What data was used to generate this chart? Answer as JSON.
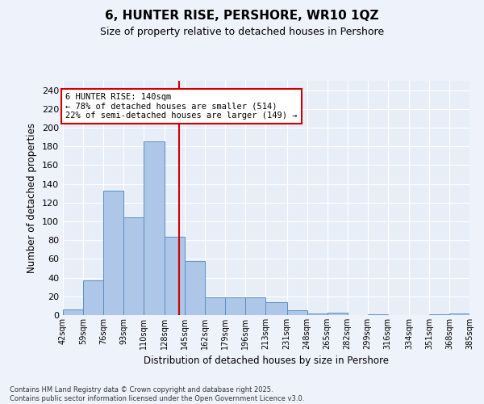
{
  "title": "6, HUNTER RISE, PERSHORE, WR10 1QZ",
  "subtitle": "Size of property relative to detached houses in Pershore",
  "xlabel": "Distribution of detached houses by size in Pershore",
  "ylabel": "Number of detached properties",
  "bin_edges": [
    42,
    59,
    76,
    93,
    110,
    128,
    145,
    162,
    179,
    196,
    213,
    231,
    248,
    265,
    282,
    299,
    316,
    334,
    351,
    368,
    385
  ],
  "bar_heights": [
    6,
    37,
    133,
    104,
    185,
    84,
    58,
    19,
    19,
    19,
    14,
    5,
    2,
    3,
    0,
    1,
    0,
    0,
    1,
    2
  ],
  "bar_color": "#aec6e8",
  "bar_edge_color": "#5a8fc2",
  "property_value": 140,
  "vline_color": "#cc0000",
  "annotation_text": "6 HUNTER RISE: 140sqm\n← 78% of detached houses are smaller (514)\n22% of semi-detached houses are larger (149) →",
  "annotation_box_color": "#ffffff",
  "annotation_box_edge": "#cc0000",
  "ylim": [
    0,
    250
  ],
  "yticks": [
    0,
    20,
    40,
    60,
    80,
    100,
    120,
    140,
    160,
    180,
    200,
    220,
    240
  ],
  "background_color": "#e8eef8",
  "fig_background_color": "#eef2fa",
  "grid_color": "#ffffff",
  "footer": "Contains HM Land Registry data © Crown copyright and database right 2025.\nContains public sector information licensed under the Open Government Licence v3.0.",
  "tick_labels": [
    "42sqm",
    "59sqm",
    "76sqm",
    "93sqm",
    "110sqm",
    "128sqm",
    "145sqm",
    "162sqm",
    "179sqm",
    "196sqm",
    "213sqm",
    "231sqm",
    "248sqm",
    "265sqm",
    "282sqm",
    "299sqm",
    "316sqm",
    "334sqm",
    "351sqm",
    "368sqm",
    "385sqm"
  ]
}
